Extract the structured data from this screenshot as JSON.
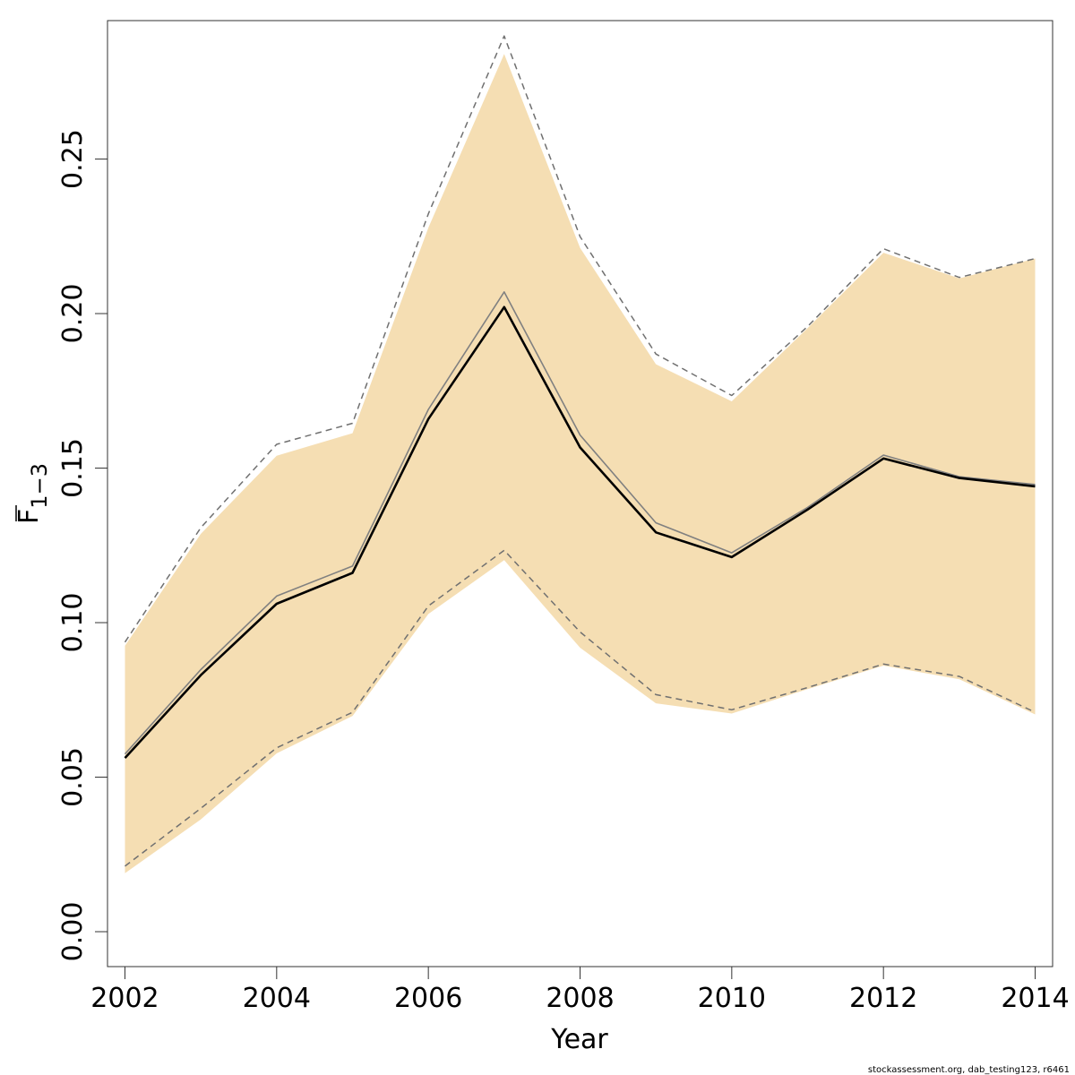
{
  "chart_data": {
    "type": "line",
    "xlabel": "Year",
    "ylabel": "F",
    "ylabel_subscript": "1−3",
    "x": [
      2002,
      2003,
      2004,
      2005,
      2006,
      2007,
      2008,
      2009,
      2010,
      2011,
      2012,
      2013,
      2014
    ],
    "xticks": [
      "2002",
      "2004",
      "2006",
      "2008",
      "2010",
      "2012",
      "2014"
    ],
    "yticks": [
      "0.00",
      "0.05",
      "0.10",
      "0.15",
      "0.20",
      "0.25"
    ],
    "xlim": [
      2001.77,
      2014.23
    ],
    "ylim": [
      -0.0113,
      0.2948
    ],
    "band": {
      "lower": [
        0.0189,
        0.0363,
        0.0577,
        0.0698,
        0.1028,
        0.1202,
        0.0919,
        0.0739,
        0.0706,
        0.0785,
        0.0861,
        0.0817,
        0.0703
      ],
      "upper": [
        0.0925,
        0.1287,
        0.154,
        0.1613,
        0.2278,
        0.284,
        0.2213,
        0.1836,
        0.1716,
        0.1953,
        0.2197,
        0.2114,
        0.2178
      ],
      "color": "#f5deb3"
    },
    "series": [
      {
        "values": [
          0.0562,
          0.083,
          0.1061,
          0.1161,
          0.1659,
          0.2021,
          0.1567,
          0.1292,
          0.1212,
          0.1366,
          0.1531,
          0.1468,
          0.1441
        ],
        "color": "#000000",
        "style": "solid-thick"
      },
      {
        "values": [
          0.0575,
          0.0848,
          0.1086,
          0.1183,
          0.169,
          0.207,
          0.1607,
          0.1323,
          0.1226,
          0.1373,
          0.1542,
          0.1472,
          0.1447
        ],
        "color": "#808080",
        "style": "solid-thin"
      },
      {
        "values": [
          0.0212,
          0.0399,
          0.0595,
          0.071,
          0.1054,
          0.1234,
          0.097,
          0.0767,
          0.0718,
          0.079,
          0.0866,
          0.0826,
          0.071
        ],
        "color": "#707070",
        "style": "dashed"
      },
      {
        "values": [
          0.0937,
          0.1307,
          0.1577,
          0.1645,
          0.2323,
          0.2898,
          0.2249,
          0.1869,
          0.1735,
          0.1958,
          0.221,
          0.2117,
          0.2178
        ],
        "color": "#707070",
        "style": "dashed"
      }
    ],
    "footnote": "stockassessment.org, dab_testing123, r6461",
    "grid": false,
    "legend": "none"
  }
}
